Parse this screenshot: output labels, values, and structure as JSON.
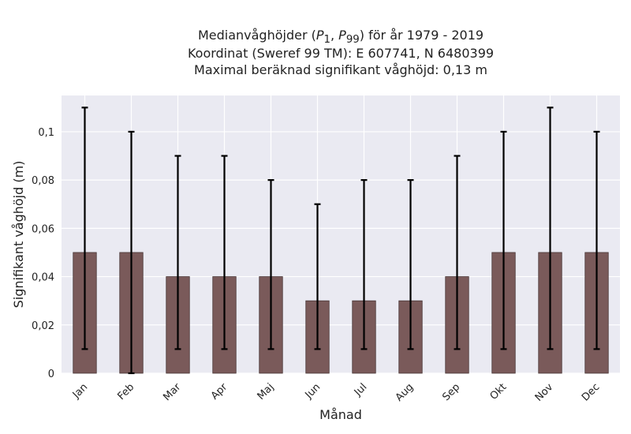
{
  "chart_data": {
    "type": "bar",
    "title_lines": [
      "Medianvåghöjder (P1, P99) för år 1979 - 2019",
      "Koordinat (Sweref 99 TM): E 607741, N 6480399",
      "Maximal beräknad signifikant våghöjd: 0,13 m"
    ],
    "title_parts": {
      "prefix": "Medianvåghöjder (",
      "p1_base": "P",
      "p1_sub": "1",
      "sep": ", ",
      "p99_base": "P",
      "p99_sub": "99",
      "suffix": ") för år 1979 - 2019"
    },
    "xlabel": "Månad",
    "ylabel": "Signifikant våghöjd (m)",
    "categories": [
      "Jan",
      "Feb",
      "Mar",
      "Apr",
      "Maj",
      "Jun",
      "Jul",
      "Aug",
      "Sep",
      "Okt",
      "Nov",
      "Dec"
    ],
    "values": [
      0.05,
      0.05,
      0.04,
      0.04,
      0.04,
      0.03,
      0.03,
      0.03,
      0.04,
      0.05,
      0.05,
      0.05
    ],
    "err_low": [
      0.01,
      0.0,
      0.01,
      0.01,
      0.01,
      0.01,
      0.01,
      0.01,
      0.01,
      0.01,
      0.01,
      0.01
    ],
    "err_high": [
      0.11,
      0.1,
      0.09,
      0.09,
      0.08,
      0.07,
      0.08,
      0.08,
      0.09,
      0.1,
      0.11,
      0.1
    ],
    "yticks": [
      0,
      0.02,
      0.04,
      0.06,
      0.08,
      0.1
    ],
    "ytick_labels": [
      "0",
      "0,02",
      "0,04",
      "0,06",
      "0,08",
      "0,1"
    ],
    "ylim": [
      0,
      0.115
    ],
    "grid": true,
    "colors": {
      "bar": "#7a5a5a",
      "bar_edge": "#4a3838",
      "plot_bg": "#eaeaf2",
      "grid": "#ffffff",
      "error": "#000000"
    }
  }
}
